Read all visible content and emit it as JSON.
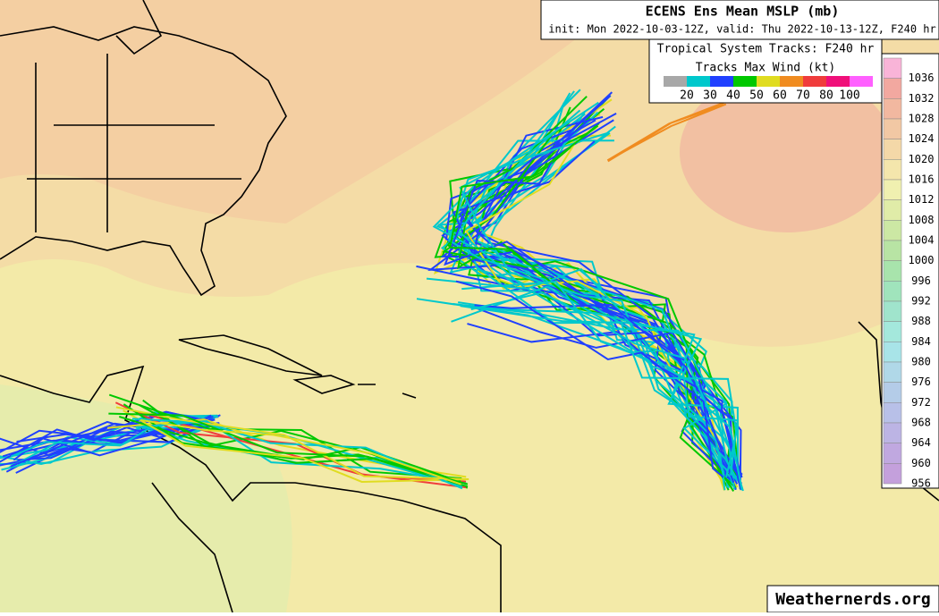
{
  "header": {
    "title": "ECENS Ens Mean MSLP (mb)",
    "subtitle": "init: Mon 2022-10-03-12Z, valid: Thu 2022-10-13-12Z, F240 hr"
  },
  "track_legend": {
    "title": "Tropical System Tracks: F240 hr",
    "subtitle": "Tracks Max Wind (kt)",
    "colors": [
      "#a8a8a8",
      "#00c8cc",
      "#2040ff",
      "#00c800",
      "#e0dc20",
      "#f08c20",
      "#f03c3c",
      "#f0107a",
      "#ff60ff"
    ],
    "labels": [
      "20",
      "30",
      "40",
      "50",
      "60",
      "70",
      "80",
      "100"
    ]
  },
  "colorbar": {
    "labels": [
      "1036",
      "1032",
      "1028",
      "1024",
      "1020",
      "1016",
      "1012",
      "1008",
      "1004",
      "1000",
      "996",
      "992",
      "988",
      "984",
      "980",
      "976",
      "972",
      "968",
      "964",
      "960",
      "956"
    ],
    "colors": [
      "#f9b4d8",
      "#f2a8a0",
      "#f2b8a0",
      "#f2c8a4",
      "#f4d8a8",
      "#f4e6ac",
      "#f0f0b0",
      "#e0eca8",
      "#cce8a4",
      "#b8e4a4",
      "#a8e4ac",
      "#a0e4bc",
      "#a0e4cc",
      "#a4e8dc",
      "#a8e4e8",
      "#b0d8e8",
      "#b4cce8",
      "#b8c0e8",
      "#bcb4e4",
      "#c0a8e0",
      "#c4a0dc"
    ]
  },
  "watermark": "Weathernerds.org"
}
